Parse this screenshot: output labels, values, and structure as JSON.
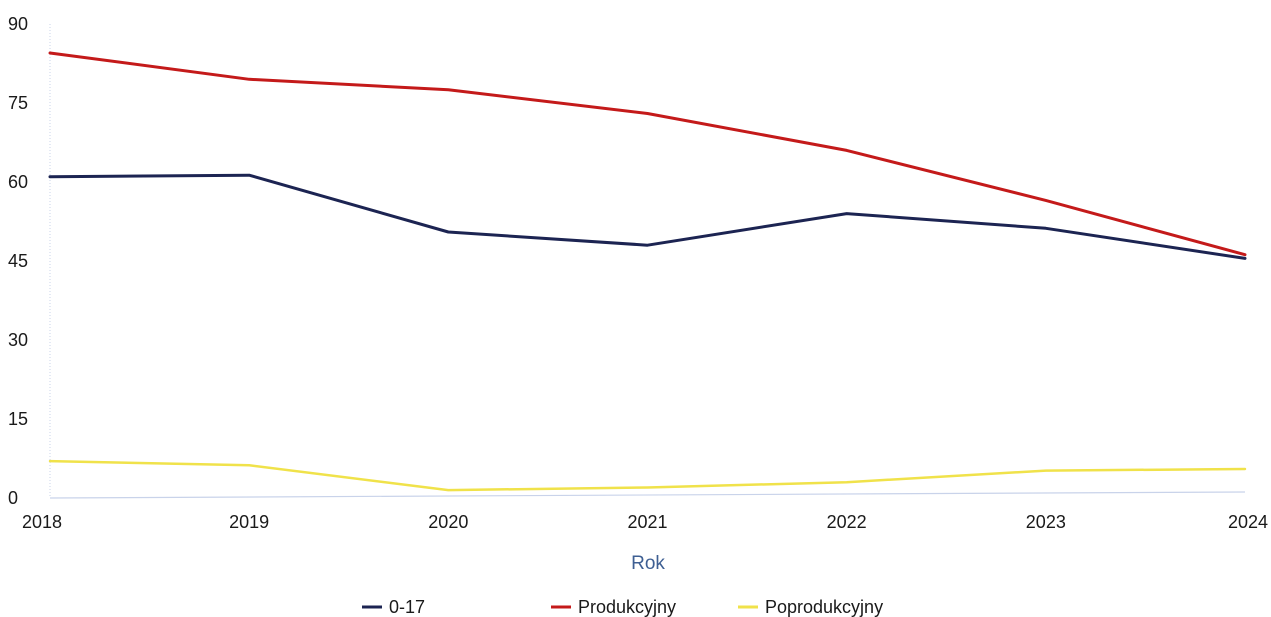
{
  "chart_data": {
    "type": "line",
    "title": "",
    "xlabel": "Rok",
    "ylabel": "",
    "x": [
      "2018",
      "2019",
      "2020",
      "2021",
      "2022",
      "2023",
      "2024"
    ],
    "ylim": [
      0,
      90
    ],
    "yticks": [
      0,
      15,
      30,
      45,
      60,
      75,
      90
    ],
    "grid": false,
    "legend_position": "bottom-center",
    "series": [
      {
        "name": "0-17",
        "color": "#1c2452",
        "values": [
          61,
          61.3,
          50.5,
          48,
          54,
          51.2,
          45.5
        ]
      },
      {
        "name": "Produkcyjny",
        "color": "#c41a1a",
        "values": [
          84.5,
          79.5,
          77.5,
          73,
          66,
          56.5,
          46.2
        ]
      },
      {
        "name": "Poprodukcyjny",
        "color": "#f0e24a",
        "values": [
          7,
          6.2,
          1.5,
          2,
          3,
          5.2,
          5.5
        ]
      }
    ]
  }
}
